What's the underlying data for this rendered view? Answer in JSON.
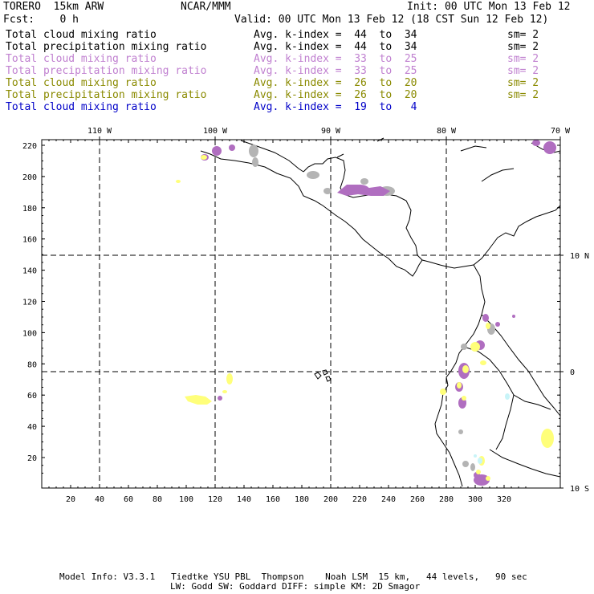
{
  "header": {
    "model": "TORERO  15km ARW",
    "org": "NCAR/MMM",
    "init": "Init: 00 UTC Mon 13 Feb 12",
    "fcst": "Fcst:    0 h",
    "valid": "Valid: 00 UTC Mon 13 Feb 12 (18 CST Sun 12 Feb 12)"
  },
  "legend": [
    {
      "field": "Total cloud mixing ratio",
      "range": "Avg. k-index =  44  to  34",
      "sm": "sm= 2",
      "color": "#000000"
    },
    {
      "field": "Total precipitation mixing ratio",
      "range": "Avg. k-index =  44  to  34",
      "sm": "sm= 2",
      "color": "#000000"
    },
    {
      "field": "Total cloud mixing ratio",
      "range": "Avg. k-index =  33  to  25",
      "sm": "sm= 2",
      "color": "#c080d0"
    },
    {
      "field": "Total precipitation mixing ratio",
      "range": "Avg. k-index =  33  to  25",
      "sm": "sm= 2",
      "color": "#c080d0"
    },
    {
      "field": "Total cloud mixing ratio",
      "range": "Avg. k-index =  26  to  20",
      "sm": "sm= 2",
      "color": "#8a8a00"
    },
    {
      "field": "Total precipitation mixing ratio",
      "range": "Avg. k-index =  26  to  20",
      "sm": "sm= 2",
      "color": "#8a8a00"
    },
    {
      "field": "Total cloud mixing ratio",
      "range": "Avg. k-index =  19  to   4",
      "sm": "",
      "color": "#0000c8"
    }
  ],
  "map": {
    "lon_labels": [
      "110 W",
      "100 W",
      "90 W",
      "80 W",
      "70 W"
    ],
    "lat_labels": [
      "10 N",
      "0",
      "10 S"
    ],
    "y_ticks": [
      "220",
      "200",
      "180",
      "160",
      "140",
      "120",
      "100",
      "80",
      "60",
      "40",
      "20"
    ],
    "x_ticks": [
      "20",
      "40",
      "60",
      "80",
      "100",
      "120",
      "140",
      "160",
      "180",
      "200",
      "220",
      "240",
      "260",
      "280",
      "300",
      "320"
    ],
    "colors": {
      "gray": "#b4b4b4",
      "purple": "#b06ec0",
      "yellow": "#ffff7a",
      "cyan": "#c8f4f8"
    }
  },
  "footer": {
    "line1": "Model Info: V3.3.1   Tiedtke YSU PBL  Thompson    Noah LSM  15 km,   44 levels,   90 sec",
    "line2": "LW: Godd SW: Goddard DIFF: simple KM: 2D Smagor"
  }
}
